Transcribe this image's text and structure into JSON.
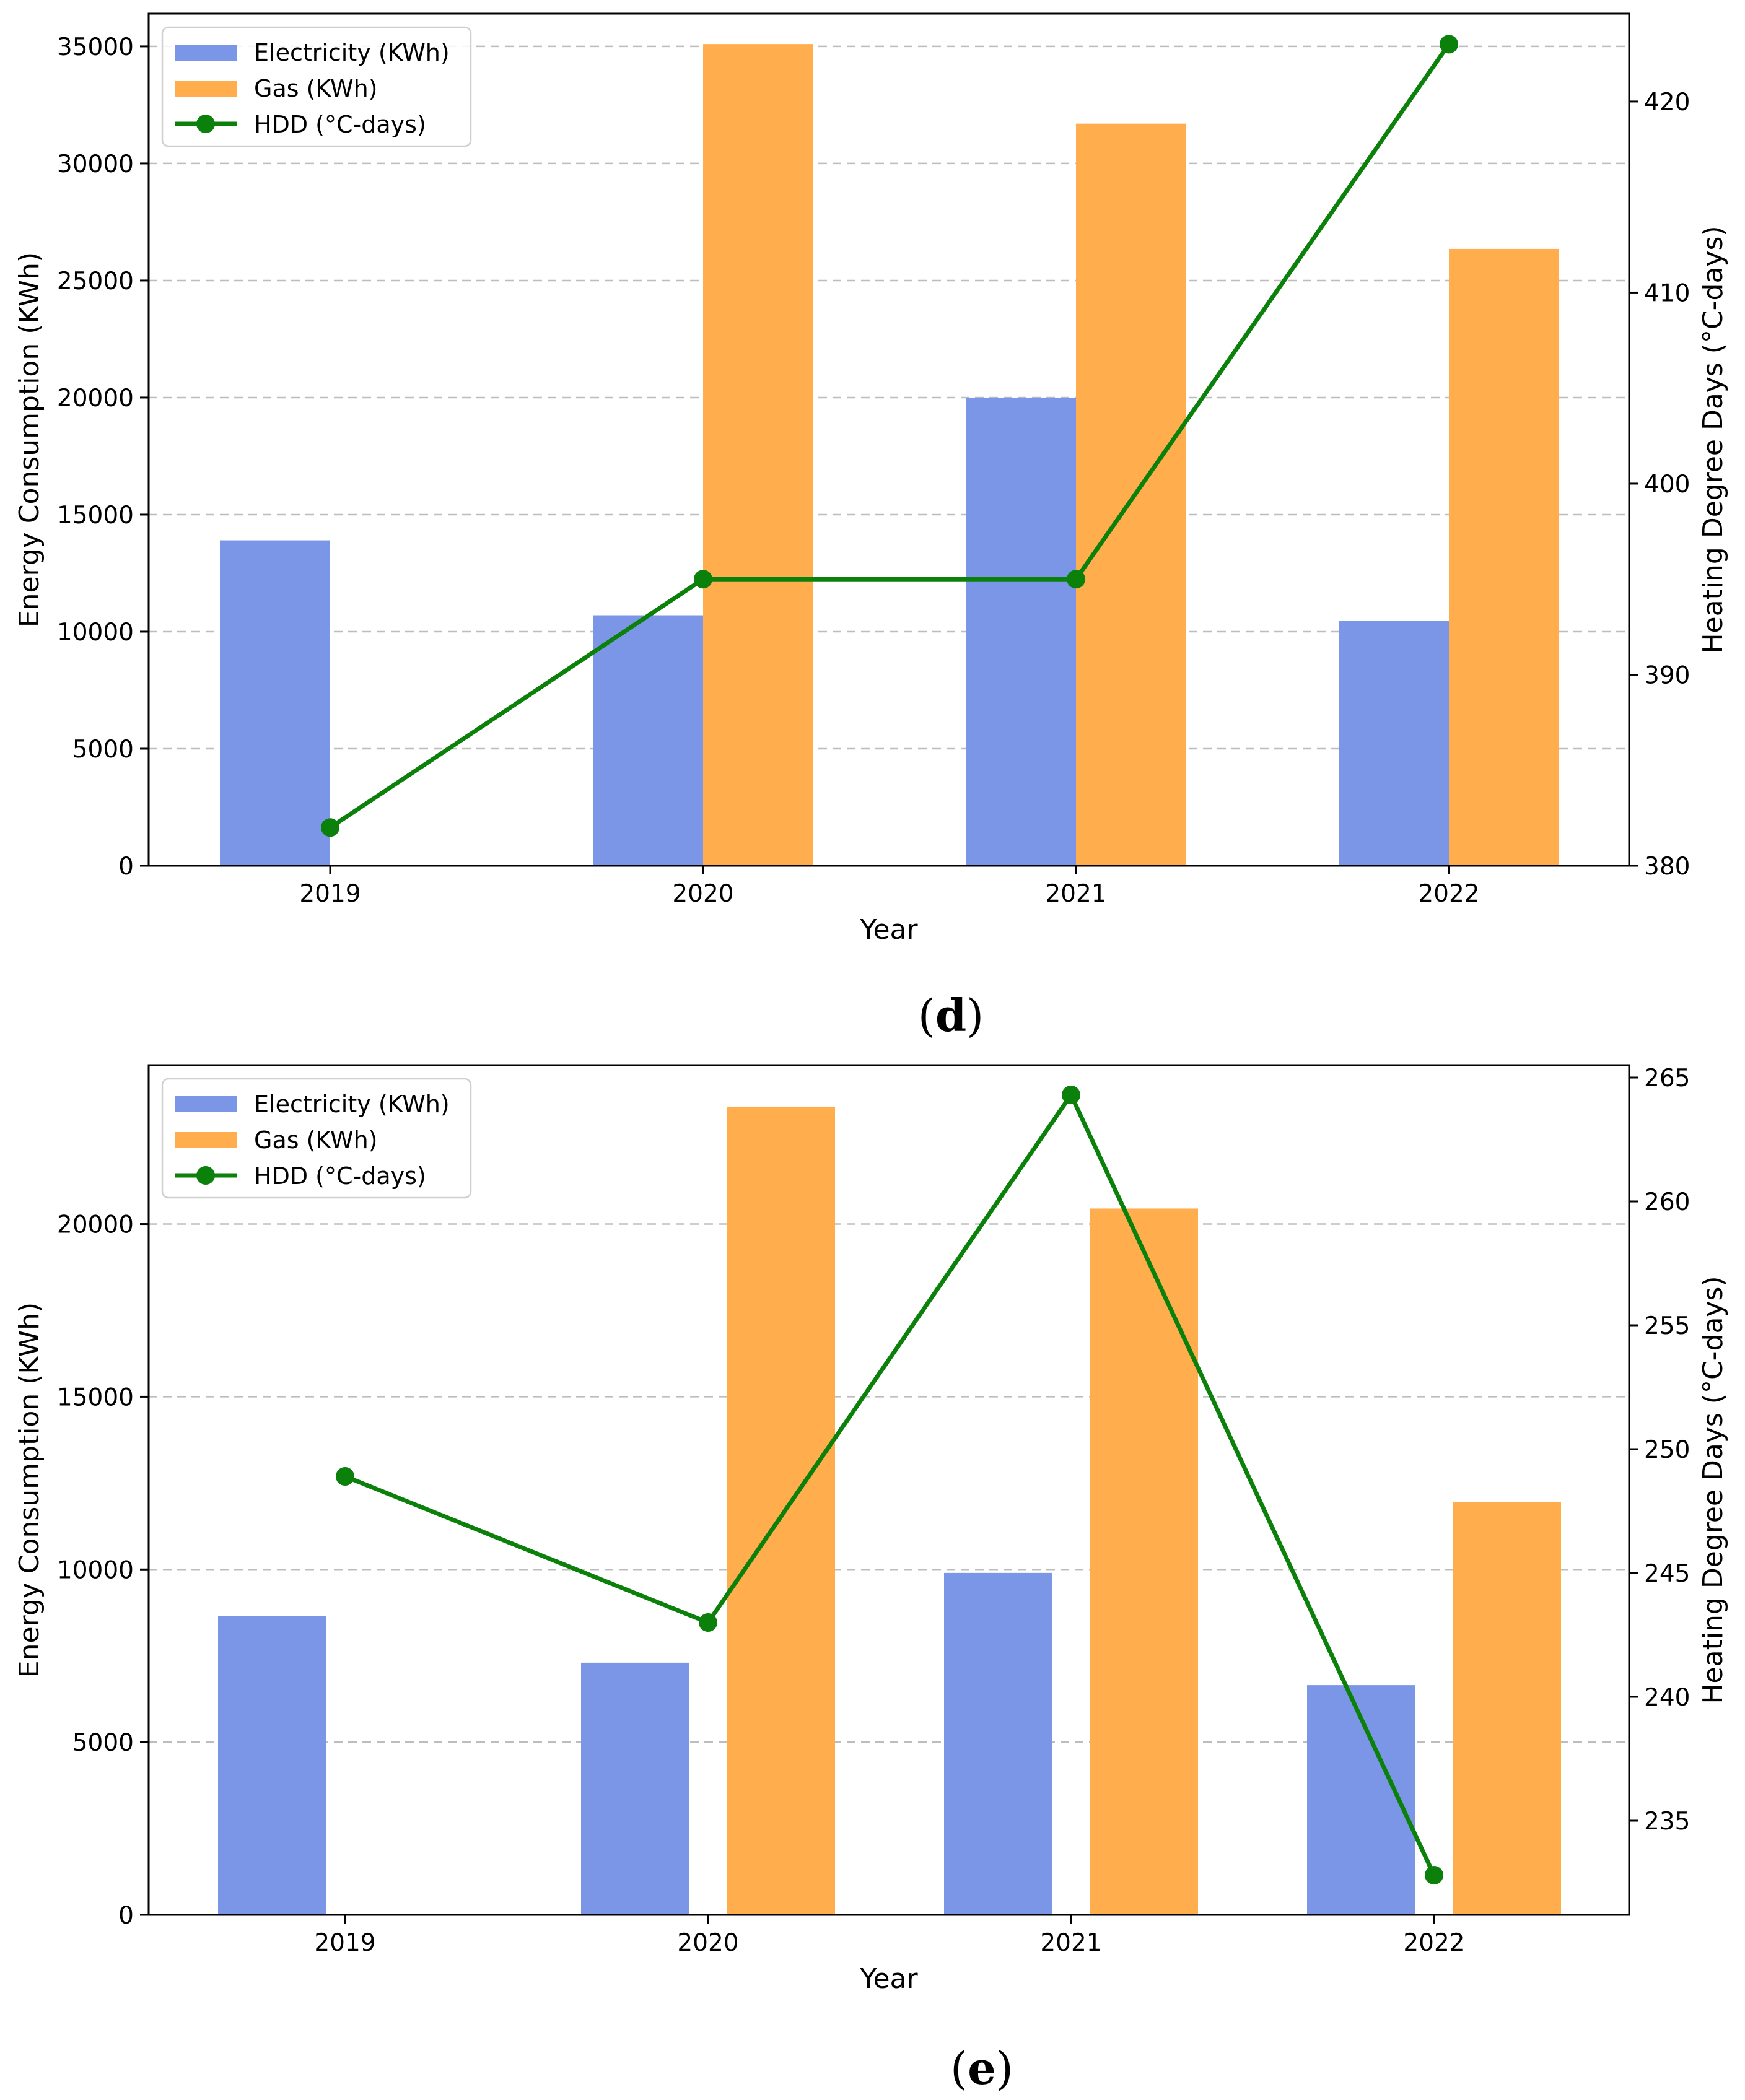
{
  "chart_data": [
    {
      "type": "bar",
      "caption": "d",
      "categories": [
        "2019",
        "2020",
        "2021",
        "2022"
      ],
      "series": [
        {
          "name": "Electricity (KWh)",
          "type": "bar",
          "axis": "left",
          "color": "#7b96e6",
          "values": [
            13900,
            10700,
            20000,
            10450
          ]
        },
        {
          "name": "Gas (KWh)",
          "type": "bar",
          "axis": "left",
          "color": "#ffad4d",
          "values": [
            null,
            35100,
            31700,
            26350
          ]
        },
        {
          "name": "HDD (°C-days)",
          "type": "line",
          "axis": "right",
          "color": "#0b800b",
          "values": [
            382,
            395,
            395,
            423
          ]
        }
      ],
      "xlabel": "Year",
      "ylabel": "Energy Consumption (KWh)",
      "ylabel_right": "Heating Degree Days (°C-days)",
      "ylabel_right_color": "#000000",
      "ylim": [
        0,
        36400
      ],
      "ylim_right": [
        380,
        424.6
      ],
      "yticks": [
        0,
        5000,
        10000,
        15000,
        20000,
        25000,
        30000,
        35000
      ],
      "yticks_right": [
        380,
        390,
        400,
        410,
        420
      ],
      "grid": "y dashed",
      "legend": "top-left"
    },
    {
      "type": "bar",
      "caption": "e",
      "categories": [
        "2019",
        "2020",
        "2021",
        "2022"
      ],
      "series": [
        {
          "name": "Electricity (KWh)",
          "type": "bar",
          "axis": "left",
          "color": "#7b96e6",
          "values": [
            8650,
            7300,
            9900,
            6650
          ]
        },
        {
          "name": "Gas (KWh)",
          "type": "bar",
          "axis": "left",
          "color": "#ffad4d",
          "values": [
            null,
            23400,
            20450,
            11950
          ]
        },
        {
          "name": "HDD (°C-days)",
          "type": "line",
          "axis": "right",
          "color": "#0b800b",
          "values": [
            248.9,
            243,
            264.3,
            232.8
          ]
        }
      ],
      "xlabel": "Year",
      "ylabel": "Energy Consumption (KWh)",
      "ylabel_right": "Heating Degree Days (°C-days)",
      "ylabel_right_color": "#0b800b",
      "ylim": [
        0,
        24600
      ],
      "ylim_right": [
        231.2,
        265.5
      ],
      "yticks": [
        0,
        5000,
        10000,
        15000,
        20000
      ],
      "yticks_right": [
        235,
        240,
        245,
        250,
        255,
        260,
        265
      ],
      "grid": "y dashed",
      "legend": "top-left"
    }
  ]
}
